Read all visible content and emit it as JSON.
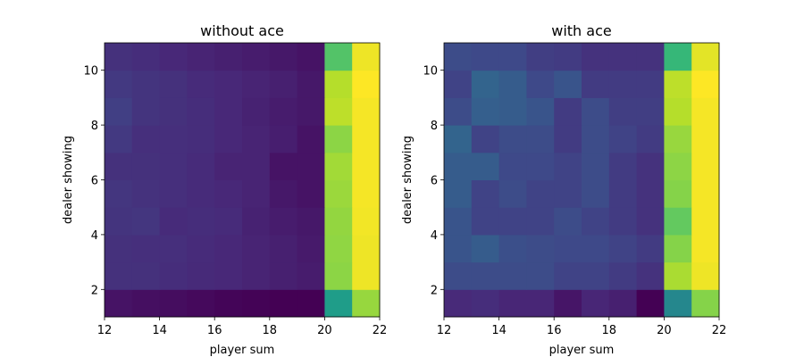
{
  "chart_data": [
    {
      "type": "heatmap",
      "title": "without ace",
      "xlabel": "player sum",
      "ylabel": "dealer showing",
      "colormap": "viridis",
      "x_edges": [
        12,
        13,
        14,
        15,
        16,
        17,
        18,
        19,
        20,
        21,
        22
      ],
      "y_edges": [
        1,
        2,
        3,
        4,
        5,
        6,
        7,
        8,
        9,
        10,
        11
      ],
      "xlim": [
        12,
        22
      ],
      "ylim": [
        1,
        11
      ],
      "xticks": [
        12,
        14,
        16,
        18,
        20,
        22
      ],
      "yticks": [
        2,
        4,
        6,
        8,
        10
      ],
      "values": [
        [
          -0.7,
          -0.72,
          -0.73,
          -0.75,
          -0.77,
          -0.78,
          -0.79,
          -0.79,
          0.15,
          0.65
        ],
        [
          -0.55,
          -0.55,
          -0.57,
          -0.59,
          -0.6,
          -0.62,
          -0.64,
          -0.66,
          0.62,
          0.88
        ],
        [
          -0.55,
          -0.56,
          -0.56,
          -0.58,
          -0.6,
          -0.62,
          -0.64,
          -0.67,
          0.63,
          0.88
        ],
        [
          -0.53,
          -0.52,
          -0.58,
          -0.57,
          -0.58,
          -0.63,
          -0.66,
          -0.68,
          0.64,
          0.89
        ],
        [
          -0.52,
          -0.54,
          -0.56,
          -0.58,
          -0.6,
          -0.62,
          -0.68,
          -0.7,
          0.66,
          0.9
        ],
        [
          -0.55,
          -0.55,
          -0.56,
          -0.58,
          -0.62,
          -0.62,
          -0.7,
          -0.7,
          0.68,
          0.9
        ],
        [
          -0.5,
          -0.56,
          -0.56,
          -0.57,
          -0.6,
          -0.62,
          -0.65,
          -0.7,
          0.62,
          0.9
        ],
        [
          -0.47,
          -0.53,
          -0.55,
          -0.57,
          -0.6,
          -0.63,
          -0.66,
          -0.68,
          0.75,
          0.9
        ],
        [
          -0.5,
          -0.53,
          -0.55,
          -0.58,
          -0.6,
          -0.62,
          -0.64,
          -0.68,
          0.73,
          0.92
        ],
        [
          -0.55,
          -0.57,
          -0.6,
          -0.62,
          -0.64,
          -0.66,
          -0.68,
          -0.7,
          0.45,
          0.88
        ]
      ]
    },
    {
      "type": "heatmap",
      "title": "with ace",
      "xlabel": "player sum",
      "ylabel": "dealer showing",
      "colormap": "viridis",
      "x_edges": [
        12,
        13,
        14,
        15,
        16,
        17,
        18,
        19,
        20,
        21,
        22
      ],
      "y_edges": [
        1,
        2,
        3,
        4,
        5,
        6,
        7,
        8,
        9,
        10,
        11
      ],
      "xlim": [
        12,
        22
      ],
      "ylim": [
        1,
        11
      ],
      "xticks": [
        12,
        14,
        16,
        18,
        20,
        22
      ],
      "yticks": [
        2,
        4,
        6,
        8,
        10
      ],
      "values": [
        [
          -0.6,
          -0.58,
          -0.62,
          -0.62,
          -0.7,
          -0.62,
          -0.65,
          -0.8,
          0.0,
          0.6
        ],
        [
          -0.4,
          -0.4,
          -0.4,
          -0.4,
          -0.45,
          -0.45,
          -0.5,
          -0.55,
          0.7,
          0.88
        ],
        [
          -0.35,
          -0.3,
          -0.38,
          -0.4,
          -0.42,
          -0.42,
          -0.45,
          -0.5,
          0.6,
          0.9
        ],
        [
          -0.35,
          -0.45,
          -0.45,
          -0.45,
          -0.4,
          -0.45,
          -0.5,
          -0.55,
          0.5,
          0.9
        ],
        [
          -0.3,
          -0.45,
          -0.4,
          -0.45,
          -0.45,
          -0.4,
          -0.5,
          -0.55,
          0.6,
          0.9
        ],
        [
          -0.3,
          -0.3,
          -0.42,
          -0.42,
          -0.45,
          -0.4,
          -0.5,
          -0.55,
          0.62,
          0.9
        ],
        [
          -0.25,
          -0.45,
          -0.4,
          -0.4,
          -0.5,
          -0.4,
          -0.45,
          -0.5,
          0.65,
          0.9
        ],
        [
          -0.4,
          -0.28,
          -0.3,
          -0.35,
          -0.5,
          -0.4,
          -0.48,
          -0.48,
          0.73,
          0.9
        ],
        [
          -0.45,
          -0.25,
          -0.3,
          -0.42,
          -0.35,
          -0.5,
          -0.5,
          -0.5,
          0.75,
          0.92
        ],
        [
          -0.4,
          -0.42,
          -0.42,
          -0.48,
          -0.5,
          -0.55,
          -0.55,
          -0.55,
          0.35,
          0.85
        ]
      ]
    }
  ]
}
